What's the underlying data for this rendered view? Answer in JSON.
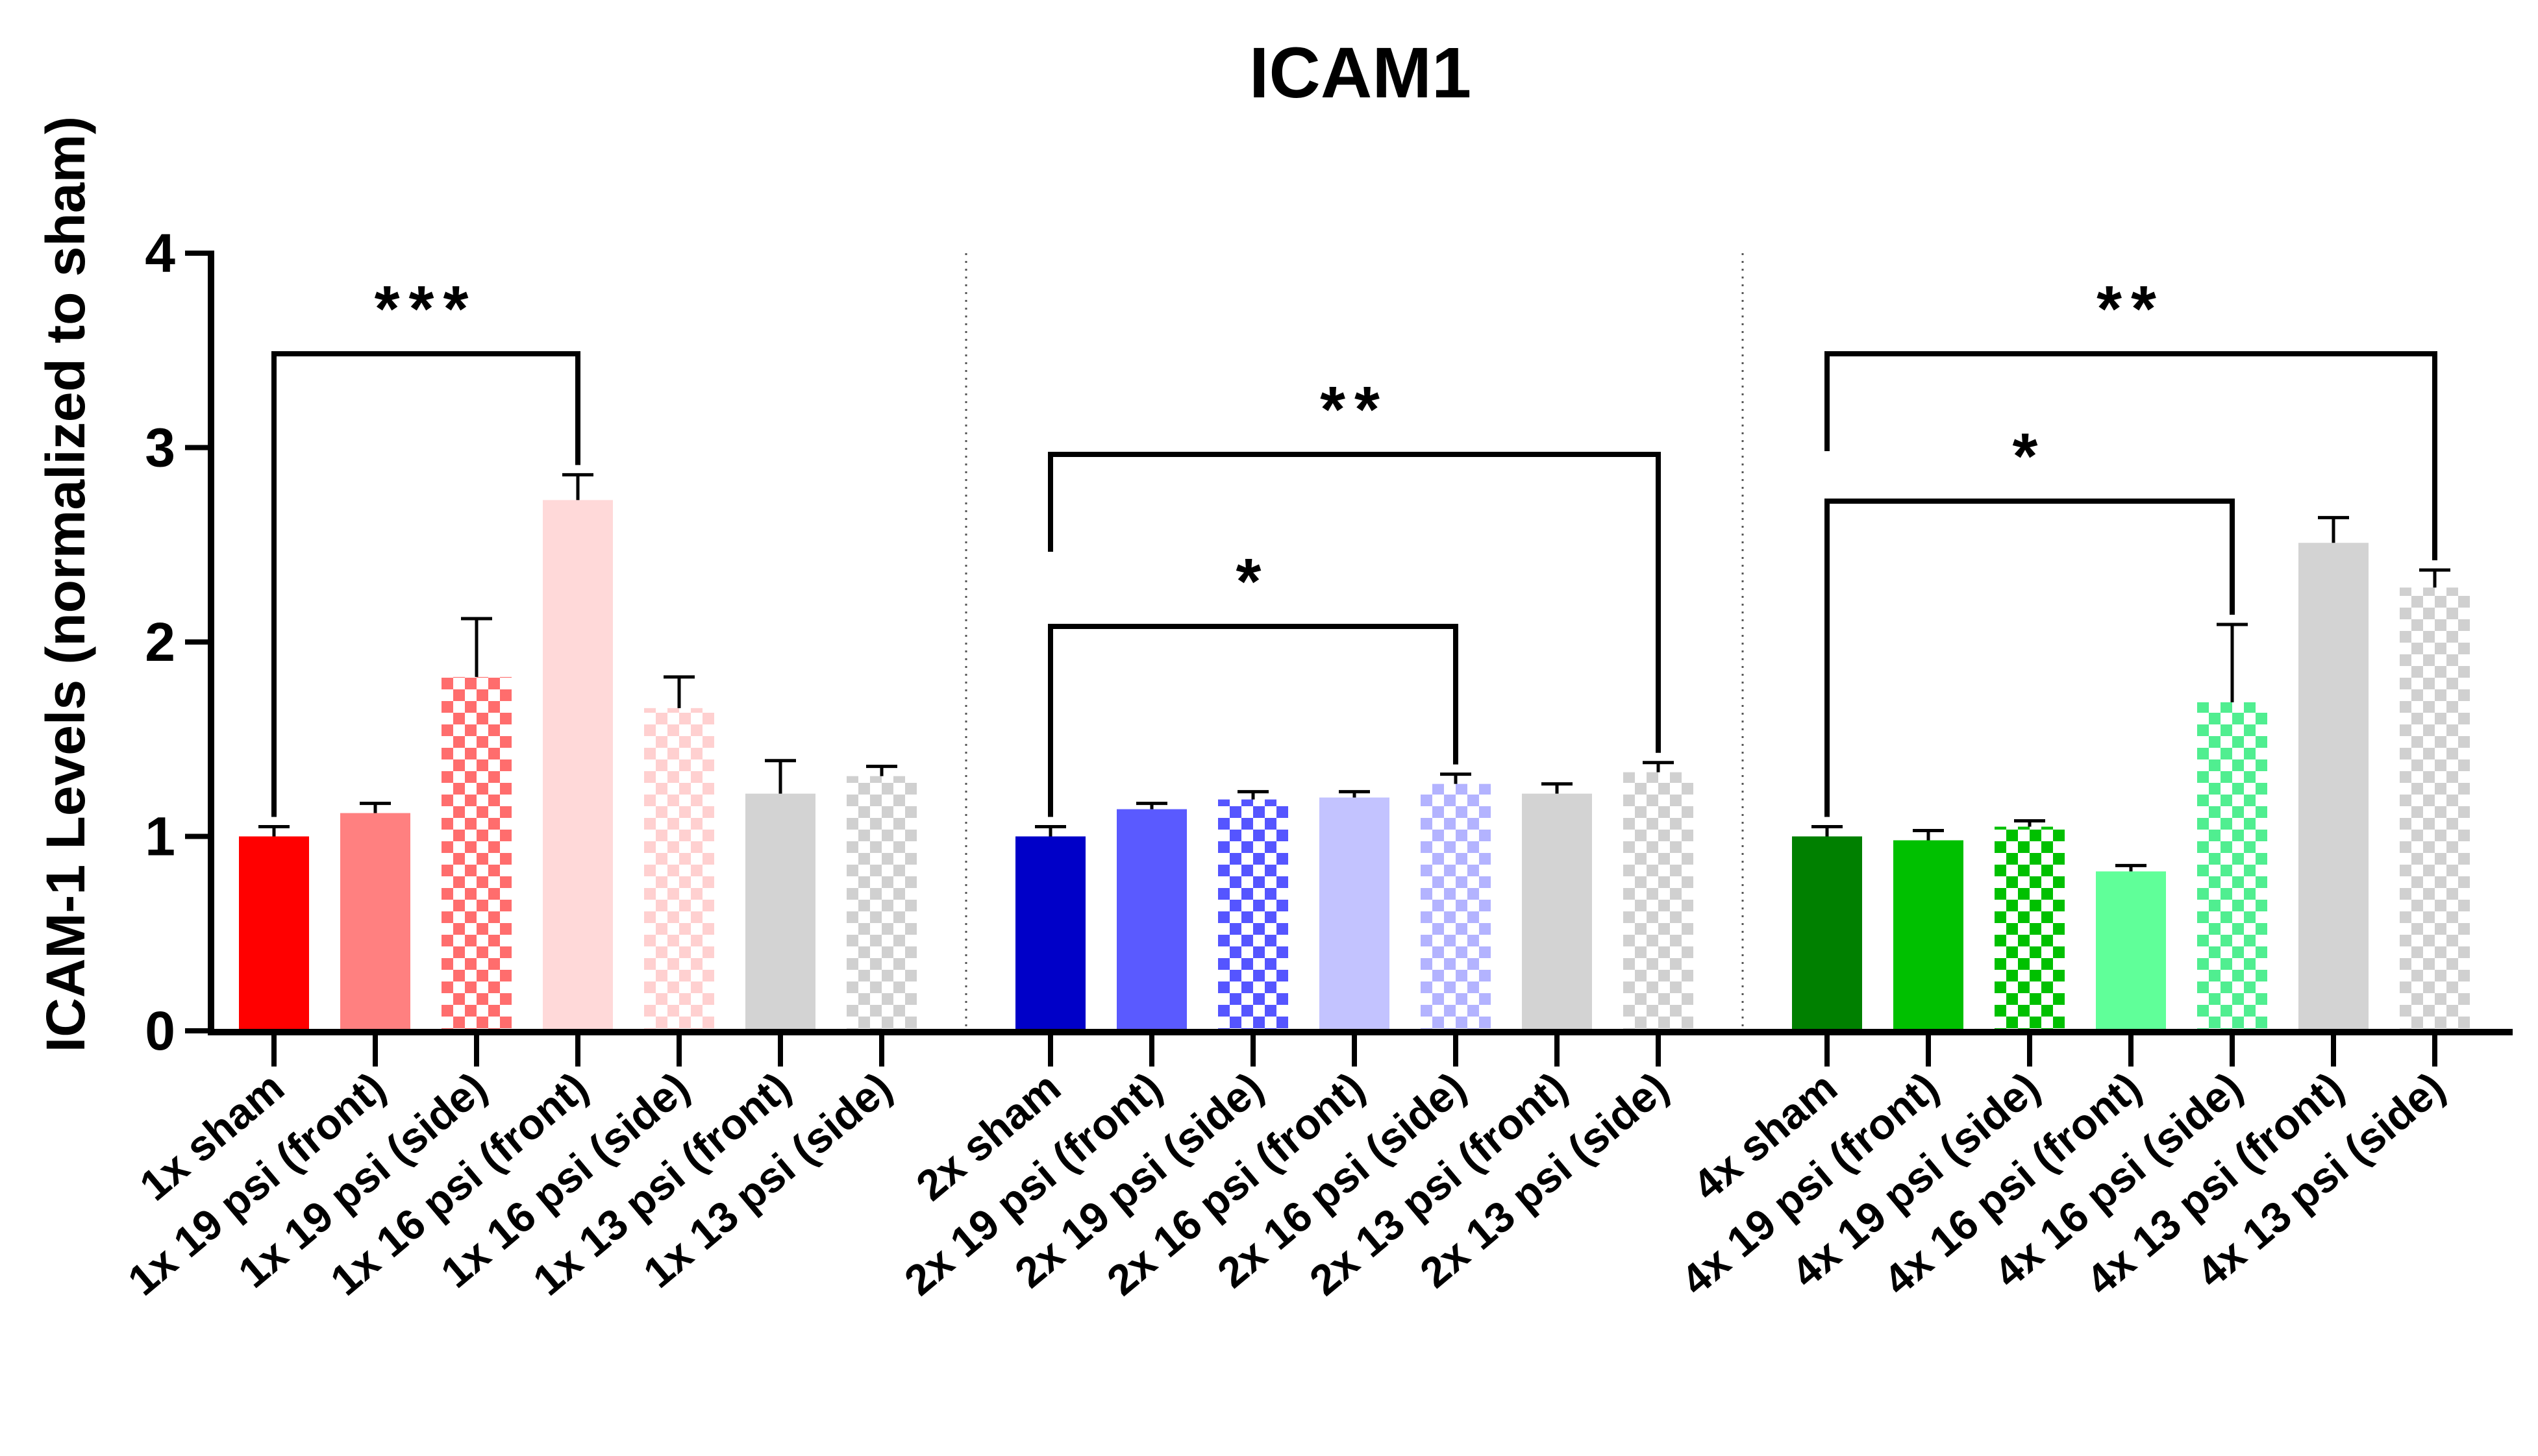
{
  "chart_data": {
    "type": "bar",
    "title": "ICAM1",
    "xlabel": "",
    "ylabel": "ICAM-1 Levels  (normalized to sham)",
    "ylim": [
      0,
      4
    ],
    "yticks": [
      "0",
      "1",
      "2",
      "3",
      "4"
    ],
    "grid": false,
    "legend": "none",
    "categories": [
      "1x sham",
      "1x 19 psi (front)",
      "1x 19 psi (side)",
      "1x 16 psi (front)",
      "1x 16 psi (side)",
      "1x 13 psi (front)",
      "1x 13 psi (side)",
      "2x sham",
      "2x 19 psi (front)",
      "2x 19 psi (side)",
      "2x 16 psi (front)",
      "2x 16 psi (side)",
      "2x 13 psi (front)",
      "2x 13 psi (side)",
      "4x sham",
      "4x 19 psi (front)",
      "4x 19 psi (side)",
      "4x 16 psi (front)",
      "4x 16 psi (side)",
      "4x 13 psi (front)",
      "4x 13 psi (side)"
    ],
    "values": [
      1.0,
      1.12,
      1.82,
      2.73,
      1.66,
      1.22,
      1.31,
      1.0,
      1.14,
      1.19,
      1.2,
      1.27,
      1.22,
      1.33,
      1.0,
      0.98,
      1.05,
      0.82,
      1.69,
      2.51,
      2.28
    ],
    "errors": [
      0.05,
      0.05,
      0.3,
      0.13,
      0.16,
      0.17,
      0.05,
      0.05,
      0.03,
      0.04,
      0.03,
      0.05,
      0.05,
      0.05,
      0.05,
      0.05,
      0.03,
      0.03,
      0.4,
      0.13,
      0.09
    ],
    "colors": [
      "#ff0000",
      "#ff8080",
      "#ff6d6d",
      "#ffd9d9",
      "#ffd0d0",
      "#d3d3d3",
      "#d0d0d0",
      "#0000c8",
      "#5a5aff",
      "#5555ff",
      "#c3c3ff",
      "#b3b3ff",
      "#d3d3d3",
      "#d0d0d0",
      "#008000",
      "#00c000",
      "#00c000",
      "#60ff99",
      "#50ee90",
      "#d3d3d3",
      "#d0d0d0"
    ],
    "patterned": [
      false,
      false,
      true,
      false,
      true,
      false,
      true,
      false,
      false,
      true,
      false,
      true,
      false,
      true,
      false,
      false,
      true,
      false,
      true,
      false,
      true
    ],
    "significance": [
      {
        "from": 0,
        "to": 3,
        "label": "***"
      },
      {
        "from": 7,
        "to": 11,
        "label": "*"
      },
      {
        "from": 7,
        "to": 13,
        "label": "**"
      },
      {
        "from": 14,
        "to": 18,
        "label": "*"
      },
      {
        "from": 14,
        "to": 20,
        "label": "**"
      }
    ]
  }
}
